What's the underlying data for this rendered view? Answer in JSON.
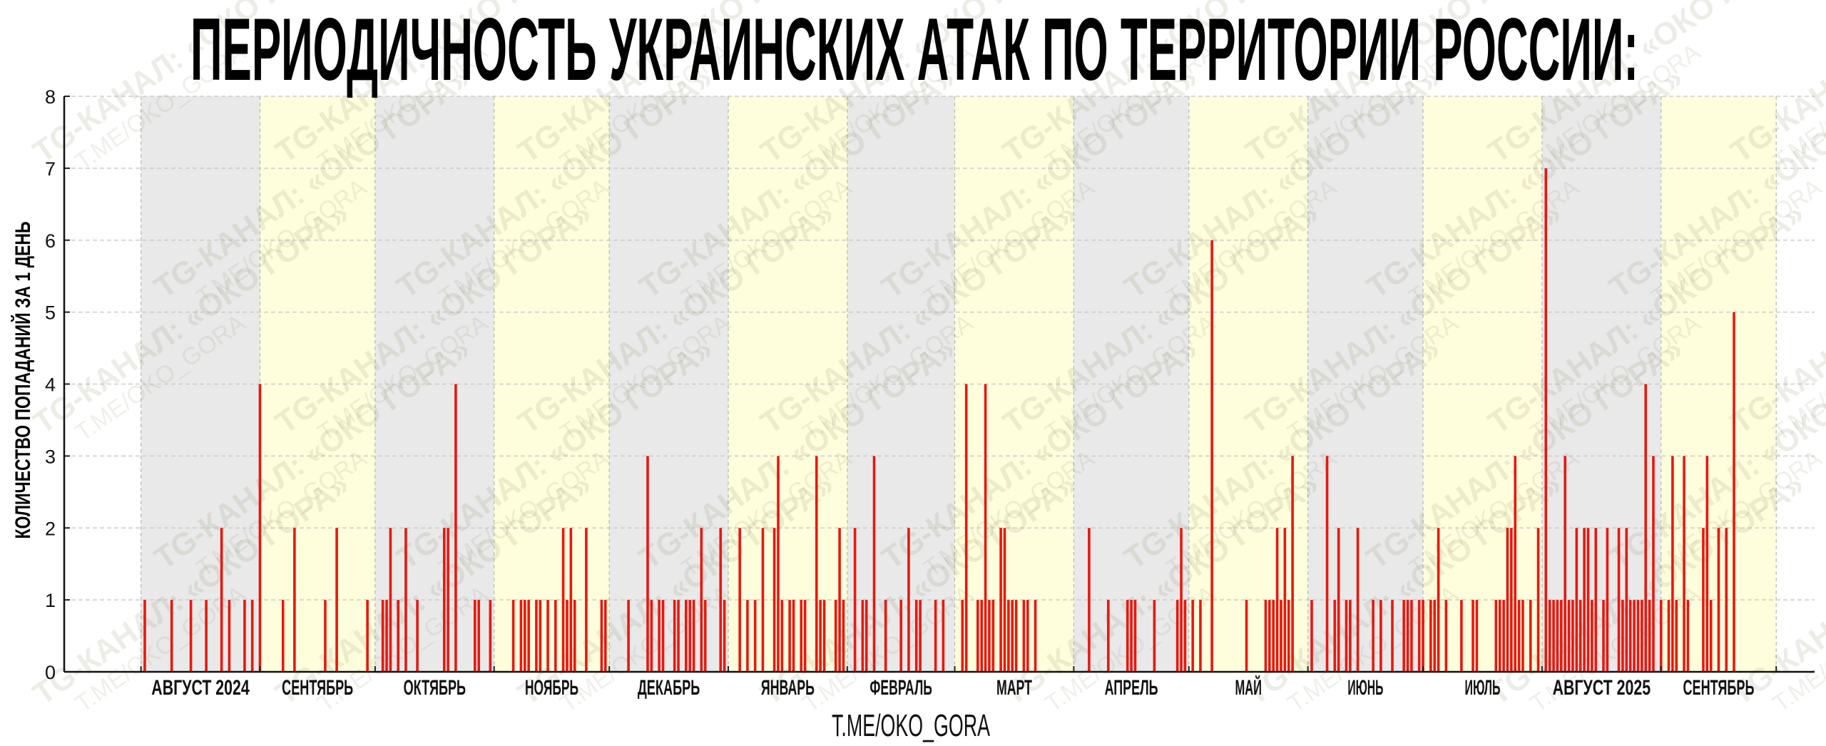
{
  "chart_data": {
    "type": "bar",
    "title": "ПЕРИОДИЧНОСТЬ УКРАИНСКИХ АТАК ПО ТЕРРИТОРИИ РОССИИ:",
    "xlabel": "T.ME/OKO_GORA",
    "ylabel": "КОЛИЧЕСТВО ПОПАДАНИЙ ЗА 1 ДЕНЬ",
    "ylim": [
      0,
      8
    ],
    "yticks": [
      "0",
      "1",
      "2",
      "3",
      "4",
      "5",
      "6",
      "7",
      "8"
    ],
    "xlim": [
      "2024-07-12",
      "2025-10-11"
    ],
    "grid": true,
    "months": [
      {
        "start": "2024-08-01",
        "label": "АВГУСТ 2024"
      },
      {
        "start": "2024-09-01",
        "label": "СЕНТЯБРЬ"
      },
      {
        "start": "2024-10-01",
        "label": "ОКТЯБРЬ"
      },
      {
        "start": "2024-11-01",
        "label": "НОЯБРЬ"
      },
      {
        "start": "2024-12-01",
        "label": "ДЕКАБРЬ"
      },
      {
        "start": "2025-01-01",
        "label": "ЯНВАРЬ"
      },
      {
        "start": "2025-02-01",
        "label": "ФЕВРАЛЬ"
      },
      {
        "start": "2025-03-01",
        "label": "МАРТ"
      },
      {
        "start": "2025-04-01",
        "label": "АПРЕЛЬ"
      },
      {
        "start": "2025-05-01",
        "label": "МАЙ"
      },
      {
        "start": "2025-06-01",
        "label": "ИЮНЬ"
      },
      {
        "start": "2025-07-01",
        "label": "ИЮЛЬ"
      },
      {
        "start": "2025-08-01",
        "label": "АВГУСТ 2025"
      },
      {
        "start": "2025-09-01",
        "label": "СЕНТЯБРЬ"
      }
    ],
    "months_end": "2025-10-01",
    "colors": {
      "bar": "#e8180f",
      "band_a": "#e9e9e9",
      "band_b": "#fefedd"
    },
    "values": [
      [
        "2024-08-02",
        1
      ],
      [
        "2024-08-09",
        1
      ],
      [
        "2024-08-14",
        1
      ],
      [
        "2024-08-18",
        1
      ],
      [
        "2024-08-22",
        2
      ],
      [
        "2024-08-24",
        1
      ],
      [
        "2024-08-28",
        1
      ],
      [
        "2024-08-30",
        1
      ],
      [
        "2024-09-01",
        4
      ],
      [
        "2024-09-07",
        1
      ],
      [
        "2024-09-10",
        2
      ],
      [
        "2024-09-18",
        1
      ],
      [
        "2024-09-21",
        2
      ],
      [
        "2024-09-29",
        1
      ],
      [
        "2024-10-03",
        1
      ],
      [
        "2024-10-04",
        1
      ],
      [
        "2024-10-05",
        2
      ],
      [
        "2024-10-07",
        1
      ],
      [
        "2024-10-09",
        2
      ],
      [
        "2024-10-12",
        1
      ],
      [
        "2024-10-19",
        2
      ],
      [
        "2024-10-20",
        2
      ],
      [
        "2024-10-22",
        4
      ],
      [
        "2024-10-27",
        1
      ],
      [
        "2024-10-28",
        1
      ],
      [
        "2024-10-31",
        1
      ],
      [
        "2024-11-06",
        1
      ],
      [
        "2024-11-08",
        1
      ],
      [
        "2024-11-09",
        1
      ],
      [
        "2024-11-10",
        1
      ],
      [
        "2024-11-12",
        1
      ],
      [
        "2024-11-13",
        1
      ],
      [
        "2024-11-15",
        1
      ],
      [
        "2024-11-17",
        1
      ],
      [
        "2024-11-19",
        2
      ],
      [
        "2024-11-20",
        1
      ],
      [
        "2024-11-21",
        2
      ],
      [
        "2024-11-22",
        1
      ],
      [
        "2024-11-25",
        2
      ],
      [
        "2024-11-29",
        1
      ],
      [
        "2024-11-30",
        1
      ],
      [
        "2024-12-06",
        1
      ],
      [
        "2024-12-11",
        3
      ],
      [
        "2024-12-12",
        1
      ],
      [
        "2024-12-14",
        1
      ],
      [
        "2024-12-15",
        1
      ],
      [
        "2024-12-18",
        1
      ],
      [
        "2024-12-19",
        1
      ],
      [
        "2024-12-21",
        1
      ],
      [
        "2024-12-22",
        1
      ],
      [
        "2024-12-23",
        1
      ],
      [
        "2024-12-25",
        2
      ],
      [
        "2024-12-26",
        1
      ],
      [
        "2024-12-30",
        2
      ],
      [
        "2024-12-31",
        1
      ],
      [
        "2025-01-04",
        2
      ],
      [
        "2025-01-06",
        1
      ],
      [
        "2025-01-08",
        1
      ],
      [
        "2025-01-10",
        2
      ],
      [
        "2025-01-13",
        2
      ],
      [
        "2025-01-14",
        3
      ],
      [
        "2025-01-15",
        1
      ],
      [
        "2025-01-17",
        1
      ],
      [
        "2025-01-18",
        1
      ],
      [
        "2025-01-20",
        1
      ],
      [
        "2025-01-21",
        1
      ],
      [
        "2025-01-24",
        3
      ],
      [
        "2025-01-25",
        1
      ],
      [
        "2025-01-26",
        1
      ],
      [
        "2025-01-29",
        1
      ],
      [
        "2025-01-30",
        2
      ],
      [
        "2025-01-31",
        1
      ],
      [
        "2025-02-03",
        2
      ],
      [
        "2025-02-05",
        1
      ],
      [
        "2025-02-06",
        1
      ],
      [
        "2025-02-08",
        3
      ],
      [
        "2025-02-11",
        1
      ],
      [
        "2025-02-15",
        1
      ],
      [
        "2025-02-17",
        2
      ],
      [
        "2025-02-19",
        1
      ],
      [
        "2025-02-20",
        1
      ],
      [
        "2025-02-24",
        1
      ],
      [
        "2025-02-26",
        1
      ],
      [
        "2025-03-03",
        1
      ],
      [
        "2025-03-04",
        4
      ],
      [
        "2025-03-07",
        1
      ],
      [
        "2025-03-08",
        1
      ],
      [
        "2025-03-09",
        4
      ],
      [
        "2025-03-10",
        1
      ],
      [
        "2025-03-11",
        1
      ],
      [
        "2025-03-13",
        2
      ],
      [
        "2025-03-14",
        2
      ],
      [
        "2025-03-15",
        1
      ],
      [
        "2025-03-16",
        1
      ],
      [
        "2025-03-17",
        1
      ],
      [
        "2025-03-19",
        1
      ],
      [
        "2025-03-20",
        1
      ],
      [
        "2025-03-22",
        1
      ],
      [
        "2025-04-05",
        2
      ],
      [
        "2025-04-10",
        1
      ],
      [
        "2025-04-15",
        1
      ],
      [
        "2025-04-16",
        1
      ],
      [
        "2025-04-17",
        1
      ],
      [
        "2025-04-22",
        1
      ],
      [
        "2025-04-28",
        1
      ],
      [
        "2025-04-29",
        2
      ],
      [
        "2025-04-30",
        1
      ],
      [
        "2025-05-02",
        1
      ],
      [
        "2025-05-04",
        1
      ],
      [
        "2025-05-07",
        6
      ],
      [
        "2025-05-16",
        1
      ],
      [
        "2025-05-21",
        1
      ],
      [
        "2025-05-22",
        1
      ],
      [
        "2025-05-23",
        1
      ],
      [
        "2025-05-24",
        2
      ],
      [
        "2025-05-25",
        1
      ],
      [
        "2025-05-26",
        2
      ],
      [
        "2025-05-27",
        1
      ],
      [
        "2025-05-28",
        3
      ],
      [
        "2025-06-02",
        1
      ],
      [
        "2025-06-06",
        3
      ],
      [
        "2025-06-08",
        1
      ],
      [
        "2025-06-09",
        2
      ],
      [
        "2025-06-11",
        1
      ],
      [
        "2025-06-12",
        1
      ],
      [
        "2025-06-14",
        2
      ],
      [
        "2025-06-18",
        1
      ],
      [
        "2025-06-20",
        1
      ],
      [
        "2025-06-23",
        1
      ],
      [
        "2025-06-26",
        1
      ],
      [
        "2025-06-27",
        1
      ],
      [
        "2025-06-28",
        1
      ],
      [
        "2025-06-30",
        1
      ],
      [
        "2025-07-01",
        1
      ],
      [
        "2025-07-03",
        1
      ],
      [
        "2025-07-04",
        1
      ],
      [
        "2025-07-05",
        2
      ],
      [
        "2025-07-07",
        1
      ],
      [
        "2025-07-11",
        1
      ],
      [
        "2025-07-14",
        1
      ],
      [
        "2025-07-15",
        1
      ],
      [
        "2025-07-20",
        1
      ],
      [
        "2025-07-21",
        1
      ],
      [
        "2025-07-22",
        1
      ],
      [
        "2025-07-23",
        2
      ],
      [
        "2025-07-24",
        2
      ],
      [
        "2025-07-25",
        3
      ],
      [
        "2025-07-26",
        1
      ],
      [
        "2025-07-27",
        1
      ],
      [
        "2025-07-29",
        1
      ],
      [
        "2025-07-31",
        2
      ],
      [
        "2025-08-02",
        7
      ],
      [
        "2025-08-03",
        1
      ],
      [
        "2025-08-04",
        1
      ],
      [
        "2025-08-05",
        1
      ],
      [
        "2025-08-06",
        1
      ],
      [
        "2025-08-07",
        3
      ],
      [
        "2025-08-08",
        1
      ],
      [
        "2025-08-09",
        1
      ],
      [
        "2025-08-10",
        2
      ],
      [
        "2025-08-11",
        1
      ],
      [
        "2025-08-12",
        2
      ],
      [
        "2025-08-13",
        2
      ],
      [
        "2025-08-14",
        1
      ],
      [
        "2025-08-15",
        2
      ],
      [
        "2025-08-17",
        1
      ],
      [
        "2025-08-18",
        2
      ],
      [
        "2025-08-21",
        2
      ],
      [
        "2025-08-22",
        1
      ],
      [
        "2025-08-23",
        2
      ],
      [
        "2025-08-24",
        1
      ],
      [
        "2025-08-25",
        1
      ],
      [
        "2025-08-26",
        1
      ],
      [
        "2025-08-27",
        1
      ],
      [
        "2025-08-28",
        4
      ],
      [
        "2025-08-29",
        1
      ],
      [
        "2025-08-30",
        3
      ],
      [
        "2025-09-01",
        1
      ],
      [
        "2025-09-03",
        1
      ],
      [
        "2025-09-04",
        3
      ],
      [
        "2025-09-05",
        1
      ],
      [
        "2025-09-07",
        3
      ],
      [
        "2025-09-08",
        1
      ],
      [
        "2025-09-12",
        2
      ],
      [
        "2025-09-13",
        3
      ],
      [
        "2025-09-14",
        1
      ],
      [
        "2025-09-16",
        2
      ],
      [
        "2025-09-18",
        2
      ],
      [
        "2025-09-20",
        5
      ]
    ]
  },
  "watermark": {
    "line1": "TG-КАНАЛ: «ОКО ГОРА»",
    "line2": "T.ME/OKO_GORA"
  }
}
